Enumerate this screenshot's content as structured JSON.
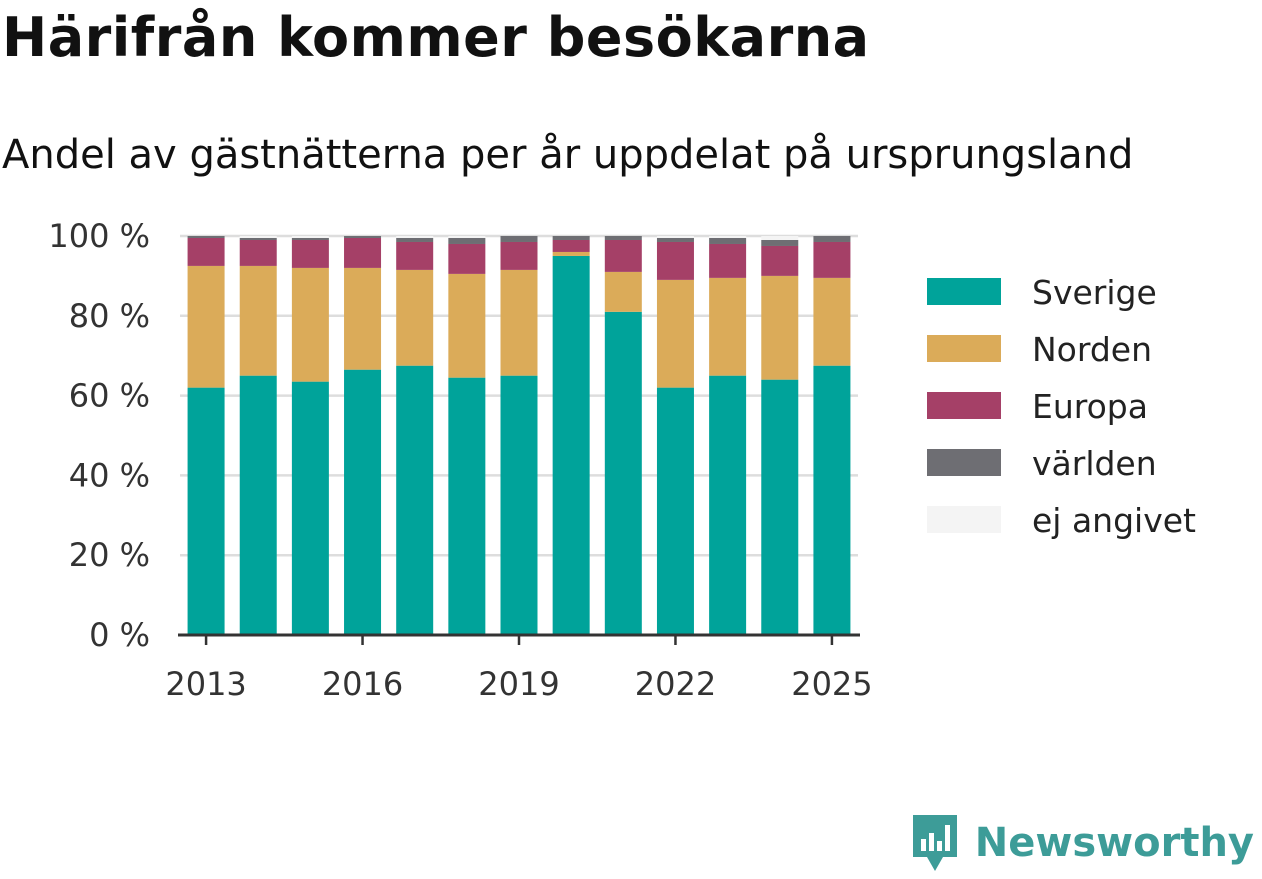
{
  "header": {
    "title": "Härifrån kommer besökarna",
    "subtitle": "Andel av gästnätterna per år uppdelat på ursprungsland"
  },
  "brand": {
    "name": "Newsworthy",
    "icon": "newsworthy-logo-icon",
    "color": "#3d9c98"
  },
  "chart_data": {
    "type": "bar",
    "stacked": true,
    "categories": [
      2013,
      2014,
      2015,
      2016,
      2017,
      2018,
      2019,
      2020,
      2021,
      2022,
      2023,
      2024,
      2025
    ],
    "x_tick_labels": [
      "2013",
      "2016",
      "2019",
      "2022",
      "2025"
    ],
    "x_tick_values": [
      2013,
      2016,
      2019,
      2022,
      2025
    ],
    "y_tick_labels": [
      "0 %",
      "20 %",
      "40 %",
      "60 %",
      "80 %",
      "100 %"
    ],
    "y_tick_values": [
      0,
      20,
      40,
      60,
      80,
      100
    ],
    "ylim": [
      0,
      100
    ],
    "grid": true,
    "legend_position": "right",
    "series": [
      {
        "name": "Sverige",
        "color": "#00a39a",
        "values": [
          62,
          65,
          63.5,
          66.5,
          67.5,
          64.5,
          65,
          95,
          81,
          62,
          65,
          64,
          67.5
        ]
      },
      {
        "name": "Norden",
        "color": "#dbab59",
        "values": [
          30.5,
          27.5,
          28.5,
          25.5,
          24,
          26,
          26.5,
          1,
          10,
          27,
          24.5,
          26,
          22
        ]
      },
      {
        "name": "Europa",
        "color": "#a54067",
        "values": [
          7,
          6.5,
          7,
          7.5,
          7,
          7.5,
          7,
          3,
          8,
          9.5,
          8.5,
          7.5,
          9
        ]
      },
      {
        "name": "världen",
        "color": "#6e6e73",
        "values": [
          0.5,
          0.5,
          0.5,
          0.5,
          1,
          1.5,
          1.5,
          1,
          1,
          1,
          1.5,
          1.5,
          1.5
        ]
      },
      {
        "name": "ej angivet",
        "color": "#f4f4f4",
        "values": [
          0,
          0.5,
          0.5,
          0,
          0.5,
          0.5,
          0,
          0,
          0,
          0.5,
          0.5,
          1,
          0
        ]
      }
    ]
  }
}
